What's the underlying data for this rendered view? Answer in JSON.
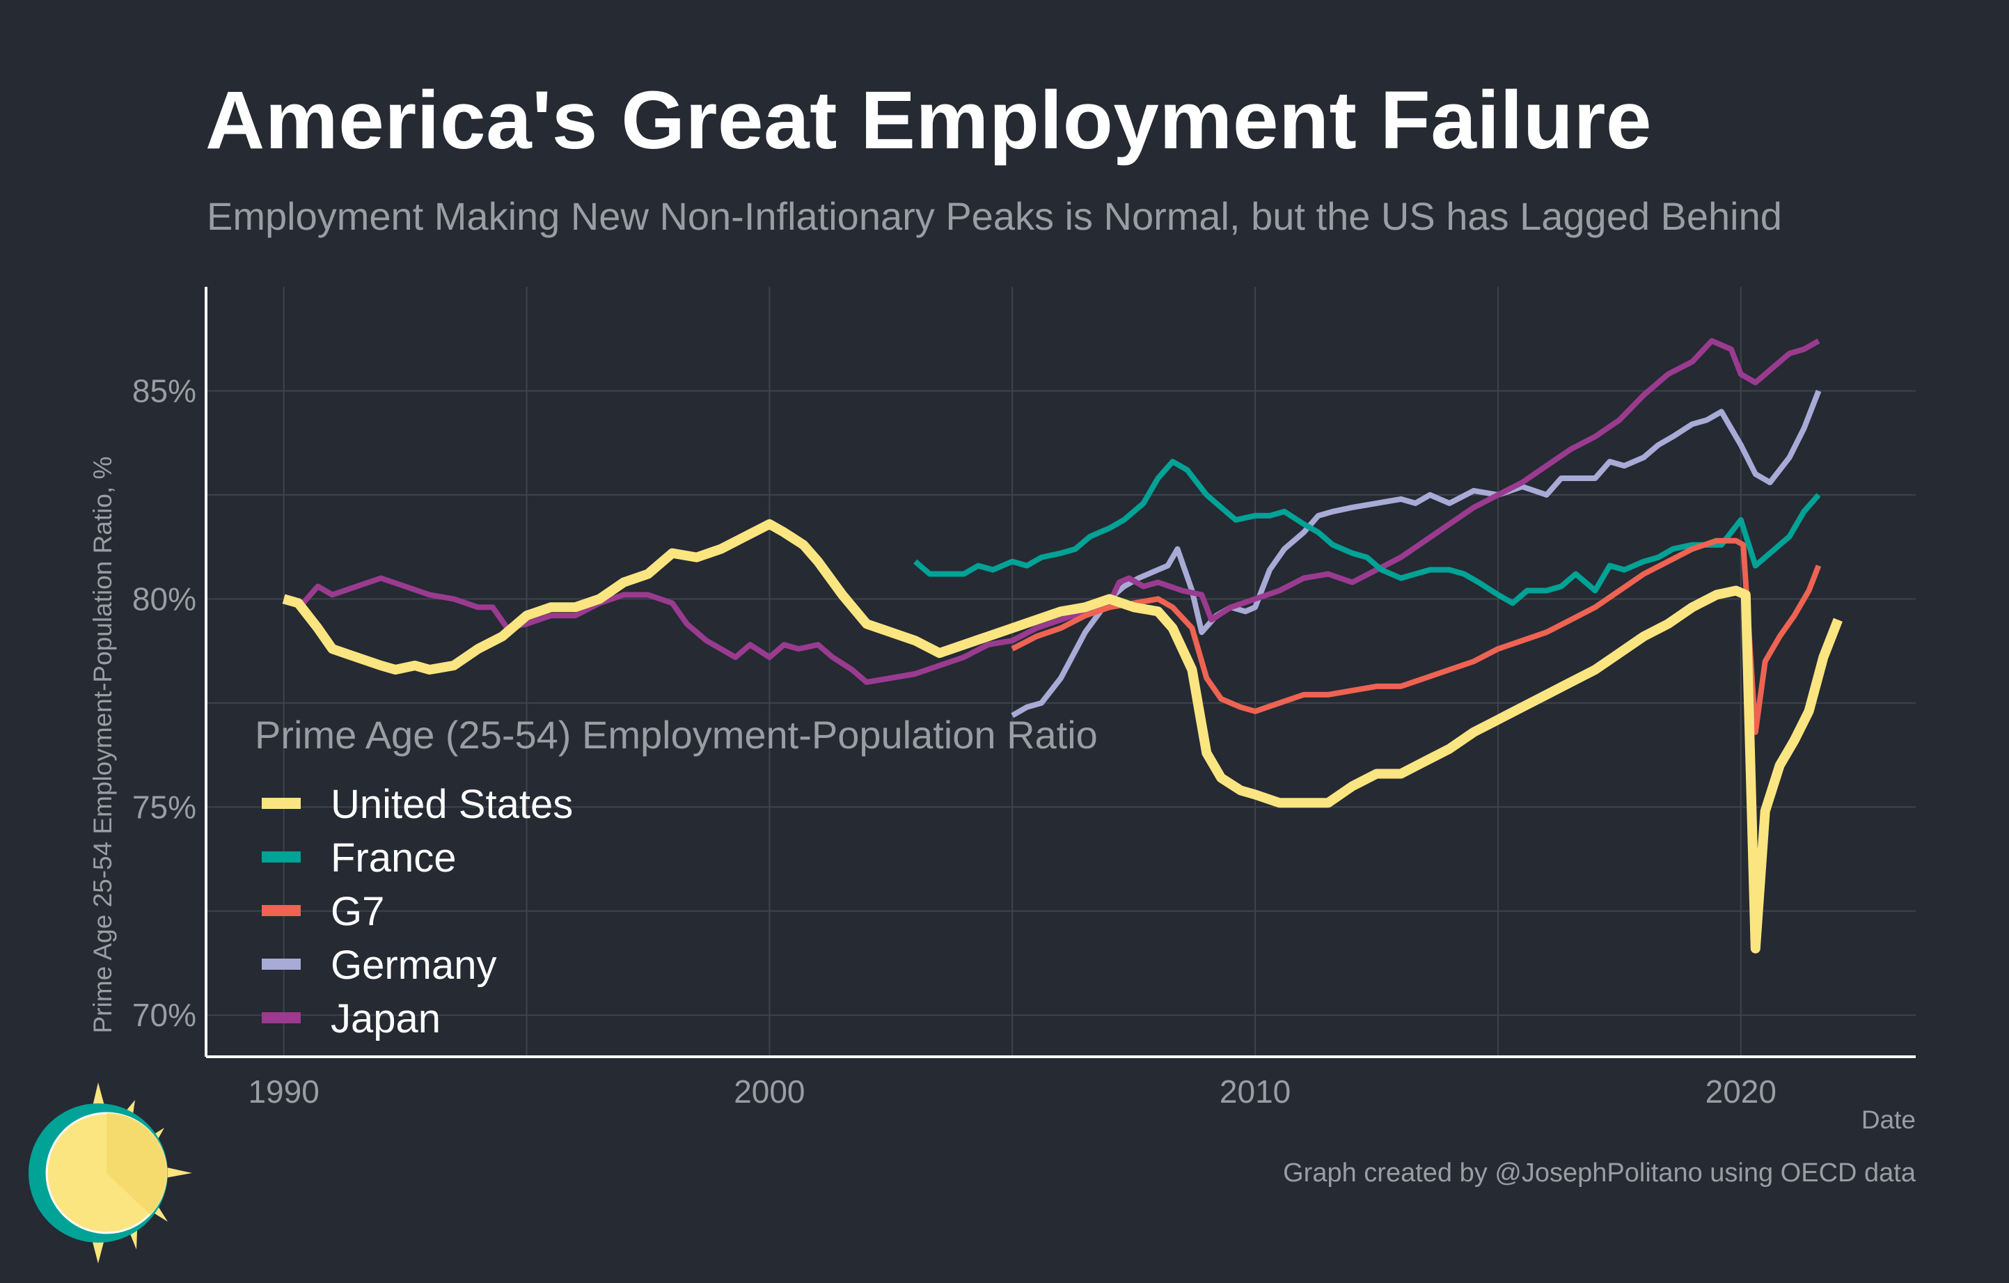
{
  "title": "America's Great Employment Failure",
  "subtitle": "Employment Making New Non-Inflationary Peaks is Normal, but the US has Lagged Behind",
  "caption": "Graph created by @JosephPolitano using OECD data",
  "logo_icon": "sun-icon",
  "colors": {
    "background": "#252a33",
    "grid": "#3e434c",
    "axis": "#ffffff",
    "United States": "#fbe580",
    "France": "#00a396",
    "G7": "#ee6352",
    "Germany": "#a8abd6",
    "Japan": "#9a3b8f"
  },
  "chart_data": {
    "type": "line",
    "xlabel": "Date",
    "ylabel": "Prime Age 25-54 Employment-Population Ratio, %",
    "xlim": [
      1988.4,
      2023.6
    ],
    "ylim": [
      69.0,
      87.5
    ],
    "x_ticks": [
      1990,
      2000,
      2010,
      2020
    ],
    "x_tick_labels": [
      "1990",
      "2000",
      "2010",
      "2020"
    ],
    "y_ticks": [
      70,
      75,
      80,
      85
    ],
    "y_tick_labels": [
      "70%",
      "75%",
      "80%",
      "85%"
    ],
    "grid": true,
    "legend_title": "Prime Age (25-54) Employment-Population Ratio",
    "legend_position": "lower-left",
    "series": [
      {
        "name": "United States",
        "color": "#fbe580",
        "points": [
          [
            1990.0,
            80.0
          ],
          [
            1990.3,
            79.9
          ],
          [
            1990.7,
            79.3
          ],
          [
            1991.0,
            78.8
          ],
          [
            1991.5,
            78.6
          ],
          [
            1992.0,
            78.4
          ],
          [
            1992.3,
            78.3
          ],
          [
            1992.7,
            78.4
          ],
          [
            1993.0,
            78.3
          ],
          [
            1993.5,
            78.4
          ],
          [
            1994.0,
            78.8
          ],
          [
            1994.5,
            79.1
          ],
          [
            1995.0,
            79.6
          ],
          [
            1995.5,
            79.8
          ],
          [
            1996.0,
            79.8
          ],
          [
            1996.5,
            80.0
          ],
          [
            1997.0,
            80.4
          ],
          [
            1997.5,
            80.6
          ],
          [
            1998.0,
            81.1
          ],
          [
            1998.5,
            81.0
          ],
          [
            1999.0,
            81.2
          ],
          [
            1999.5,
            81.5
          ],
          [
            2000.0,
            81.8
          ],
          [
            2000.3,
            81.6
          ],
          [
            2000.7,
            81.3
          ],
          [
            2001.0,
            80.9
          ],
          [
            2001.5,
            80.1
          ],
          [
            2002.0,
            79.4
          ],
          [
            2002.5,
            79.2
          ],
          [
            2003.0,
            79.0
          ],
          [
            2003.5,
            78.7
          ],
          [
            2004.0,
            78.9
          ],
          [
            2004.5,
            79.1
          ],
          [
            2005.0,
            79.3
          ],
          [
            2005.5,
            79.5
          ],
          [
            2006.0,
            79.7
          ],
          [
            2006.5,
            79.8
          ],
          [
            2007.0,
            80.0
          ],
          [
            2007.5,
            79.8
          ],
          [
            2008.0,
            79.7
          ],
          [
            2008.3,
            79.3
          ],
          [
            2008.7,
            78.3
          ],
          [
            2009.0,
            76.3
          ],
          [
            2009.3,
            75.7
          ],
          [
            2009.7,
            75.4
          ],
          [
            2010.0,
            75.3
          ],
          [
            2010.5,
            75.1
          ],
          [
            2011.0,
            75.1
          ],
          [
            2011.5,
            75.1
          ],
          [
            2012.0,
            75.5
          ],
          [
            2012.5,
            75.8
          ],
          [
            2013.0,
            75.8
          ],
          [
            2013.5,
            76.1
          ],
          [
            2014.0,
            76.4
          ],
          [
            2014.5,
            76.8
          ],
          [
            2015.0,
            77.1
          ],
          [
            2015.5,
            77.4
          ],
          [
            2016.0,
            77.7
          ],
          [
            2016.5,
            78.0
          ],
          [
            2017.0,
            78.3
          ],
          [
            2017.5,
            78.7
          ],
          [
            2018.0,
            79.1
          ],
          [
            2018.5,
            79.4
          ],
          [
            2019.0,
            79.8
          ],
          [
            2019.5,
            80.1
          ],
          [
            2019.9,
            80.2
          ],
          [
            2020.1,
            80.1
          ],
          [
            2020.3,
            71.6
          ],
          [
            2020.5,
            74.9
          ],
          [
            2020.8,
            76.0
          ],
          [
            2021.1,
            76.6
          ],
          [
            2021.4,
            77.3
          ],
          [
            2021.7,
            78.6
          ],
          [
            2022.0,
            79.5
          ]
        ]
      },
      {
        "name": "France",
        "color": "#00a396",
        "points": [
          [
            2003.0,
            80.9
          ],
          [
            2003.3,
            80.6
          ],
          [
            2003.7,
            80.6
          ],
          [
            2004.0,
            80.6
          ],
          [
            2004.3,
            80.8
          ],
          [
            2004.6,
            80.7
          ],
          [
            2005.0,
            80.9
          ],
          [
            2005.3,
            80.8
          ],
          [
            2005.6,
            81.0
          ],
          [
            2006.0,
            81.1
          ],
          [
            2006.3,
            81.2
          ],
          [
            2006.6,
            81.5
          ],
          [
            2007.0,
            81.7
          ],
          [
            2007.3,
            81.9
          ],
          [
            2007.7,
            82.3
          ],
          [
            2008.0,
            82.9
          ],
          [
            2008.3,
            83.3
          ],
          [
            2008.6,
            83.1
          ],
          [
            2009.0,
            82.5
          ],
          [
            2009.3,
            82.2
          ],
          [
            2009.6,
            81.9
          ],
          [
            2010.0,
            82.0
          ],
          [
            2010.3,
            82.0
          ],
          [
            2010.6,
            82.1
          ],
          [
            2011.0,
            81.8
          ],
          [
            2011.3,
            81.6
          ],
          [
            2011.6,
            81.3
          ],
          [
            2012.0,
            81.1
          ],
          [
            2012.3,
            81.0
          ],
          [
            2012.6,
            80.7
          ],
          [
            2013.0,
            80.5
          ],
          [
            2013.3,
            80.6
          ],
          [
            2013.6,
            80.7
          ],
          [
            2014.0,
            80.7
          ],
          [
            2014.3,
            80.6
          ],
          [
            2014.6,
            80.4
          ],
          [
            2015.0,
            80.1
          ],
          [
            2015.3,
            79.9
          ],
          [
            2015.6,
            80.2
          ],
          [
            2016.0,
            80.2
          ],
          [
            2016.3,
            80.3
          ],
          [
            2016.6,
            80.6
          ],
          [
            2017.0,
            80.2
          ],
          [
            2017.3,
            80.8
          ],
          [
            2017.6,
            80.7
          ],
          [
            2018.0,
            80.9
          ],
          [
            2018.3,
            81.0
          ],
          [
            2018.6,
            81.2
          ],
          [
            2019.0,
            81.3
          ],
          [
            2019.3,
            81.3
          ],
          [
            2019.6,
            81.3
          ],
          [
            2020.0,
            81.9
          ],
          [
            2020.3,
            80.8
          ],
          [
            2020.6,
            81.1
          ],
          [
            2021.0,
            81.5
          ],
          [
            2021.3,
            82.1
          ],
          [
            2021.6,
            82.5
          ]
        ]
      },
      {
        "name": "G7",
        "color": "#ee6352",
        "points": [
          [
            2005.0,
            78.8
          ],
          [
            2005.5,
            79.1
          ],
          [
            2006.0,
            79.3
          ],
          [
            2006.5,
            79.6
          ],
          [
            2007.0,
            79.8
          ],
          [
            2007.5,
            79.9
          ],
          [
            2008.0,
            80.0
          ],
          [
            2008.3,
            79.8
          ],
          [
            2008.7,
            79.3
          ],
          [
            2009.0,
            78.1
          ],
          [
            2009.3,
            77.6
          ],
          [
            2009.7,
            77.4
          ],
          [
            2010.0,
            77.3
          ],
          [
            2010.5,
            77.5
          ],
          [
            2011.0,
            77.7
          ],
          [
            2011.5,
            77.7
          ],
          [
            2012.0,
            77.8
          ],
          [
            2012.5,
            77.9
          ],
          [
            2013.0,
            77.9
          ],
          [
            2013.5,
            78.1
          ],
          [
            2014.0,
            78.3
          ],
          [
            2014.5,
            78.5
          ],
          [
            2015.0,
            78.8
          ],
          [
            2015.5,
            79.0
          ],
          [
            2016.0,
            79.2
          ],
          [
            2016.5,
            79.5
          ],
          [
            2017.0,
            79.8
          ],
          [
            2017.5,
            80.2
          ],
          [
            2018.0,
            80.6
          ],
          [
            2018.5,
            80.9
          ],
          [
            2019.0,
            81.2
          ],
          [
            2019.5,
            81.4
          ],
          [
            2019.9,
            81.4
          ],
          [
            2020.05,
            81.3
          ],
          [
            2020.3,
            76.8
          ],
          [
            2020.5,
            78.5
          ],
          [
            2020.8,
            79.1
          ],
          [
            2021.1,
            79.6
          ],
          [
            2021.4,
            80.2
          ],
          [
            2021.6,
            80.8
          ]
        ]
      },
      {
        "name": "Germany",
        "color": "#a8abd6",
        "points": [
          [
            2005.0,
            77.2
          ],
          [
            2005.3,
            77.4
          ],
          [
            2005.6,
            77.5
          ],
          [
            2006.0,
            78.1
          ],
          [
            2006.5,
            79.2
          ],
          [
            2007.0,
            80.0
          ],
          [
            2007.3,
            80.3
          ],
          [
            2007.6,
            80.5
          ],
          [
            2008.0,
            80.7
          ],
          [
            2008.2,
            80.8
          ],
          [
            2008.4,
            81.2
          ],
          [
            2008.7,
            80.2
          ],
          [
            2008.9,
            79.2
          ],
          [
            2009.2,
            79.6
          ],
          [
            2009.5,
            79.8
          ],
          [
            2009.8,
            79.7
          ],
          [
            2010.0,
            79.8
          ],
          [
            2010.3,
            80.7
          ],
          [
            2010.6,
            81.2
          ],
          [
            2011.0,
            81.6
          ],
          [
            2011.3,
            82.0
          ],
          [
            2011.6,
            82.1
          ],
          [
            2012.0,
            82.2
          ],
          [
            2012.5,
            82.3
          ],
          [
            2013.0,
            82.4
          ],
          [
            2013.3,
            82.3
          ],
          [
            2013.6,
            82.5
          ],
          [
            2014.0,
            82.3
          ],
          [
            2014.5,
            82.6
          ],
          [
            2015.0,
            82.5
          ],
          [
            2015.5,
            82.7
          ],
          [
            2016.0,
            82.5
          ],
          [
            2016.3,
            82.9
          ],
          [
            2016.6,
            82.9
          ],
          [
            2017.0,
            82.9
          ],
          [
            2017.3,
            83.3
          ],
          [
            2017.6,
            83.2
          ],
          [
            2018.0,
            83.4
          ],
          [
            2018.3,
            83.7
          ],
          [
            2018.6,
            83.9
          ],
          [
            2019.0,
            84.2
          ],
          [
            2019.3,
            84.3
          ],
          [
            2019.6,
            84.5
          ],
          [
            2020.0,
            83.7
          ],
          [
            2020.3,
            83.0
          ],
          [
            2020.6,
            82.8
          ],
          [
            2021.0,
            83.4
          ],
          [
            2021.3,
            84.1
          ],
          [
            2021.6,
            85.0
          ]
        ]
      },
      {
        "name": "Japan",
        "color": "#9a3b8f",
        "points": [
          [
            1990.0,
            80.0
          ],
          [
            1990.4,
            79.9
          ],
          [
            1990.7,
            80.3
          ],
          [
            1991.0,
            80.1
          ],
          [
            1991.5,
            80.3
          ],
          [
            1992.0,
            80.5
          ],
          [
            1992.5,
            80.3
          ],
          [
            1993.0,
            80.1
          ],
          [
            1993.5,
            80.0
          ],
          [
            1994.0,
            79.8
          ],
          [
            1994.3,
            79.8
          ],
          [
            1994.6,
            79.3
          ],
          [
            1995.0,
            79.4
          ],
          [
            1995.5,
            79.6
          ],
          [
            1996.0,
            79.6
          ],
          [
            1996.5,
            79.9
          ],
          [
            1997.0,
            80.1
          ],
          [
            1997.5,
            80.1
          ],
          [
            1998.0,
            79.9
          ],
          [
            1998.3,
            79.4
          ],
          [
            1998.7,
            79.0
          ],
          [
            1999.0,
            78.8
          ],
          [
            1999.3,
            78.6
          ],
          [
            1999.6,
            78.9
          ],
          [
            2000.0,
            78.6
          ],
          [
            2000.3,
            78.9
          ],
          [
            2000.6,
            78.8
          ],
          [
            2001.0,
            78.9
          ],
          [
            2001.3,
            78.6
          ],
          [
            2001.7,
            78.3
          ],
          [
            2002.0,
            78.0
          ],
          [
            2002.5,
            78.1
          ],
          [
            2003.0,
            78.2
          ],
          [
            2003.5,
            78.4
          ],
          [
            2004.0,
            78.6
          ],
          [
            2004.5,
            78.9
          ],
          [
            2005.0,
            79.0
          ],
          [
            2005.5,
            79.3
          ],
          [
            2006.0,
            79.5
          ],
          [
            2006.5,
            79.7
          ],
          [
            2007.0,
            79.9
          ],
          [
            2007.2,
            80.4
          ],
          [
            2007.4,
            80.5
          ],
          [
            2007.7,
            80.3
          ],
          [
            2008.0,
            80.4
          ],
          [
            2008.5,
            80.2
          ],
          [
            2008.9,
            80.1
          ],
          [
            2009.1,
            79.5
          ],
          [
            2009.5,
            79.8
          ],
          [
            2010.0,
            80.0
          ],
          [
            2010.5,
            80.2
          ],
          [
            2011.0,
            80.5
          ],
          [
            2011.5,
            80.6
          ],
          [
            2012.0,
            80.4
          ],
          [
            2012.5,
            80.7
          ],
          [
            2013.0,
            81.0
          ],
          [
            2013.5,
            81.4
          ],
          [
            2014.0,
            81.8
          ],
          [
            2014.5,
            82.2
          ],
          [
            2015.0,
            82.5
          ],
          [
            2015.5,
            82.8
          ],
          [
            2016.0,
            83.2
          ],
          [
            2016.5,
            83.6
          ],
          [
            2017.0,
            83.9
          ],
          [
            2017.5,
            84.3
          ],
          [
            2018.0,
            84.9
          ],
          [
            2018.5,
            85.4
          ],
          [
            2019.0,
            85.7
          ],
          [
            2019.4,
            86.2
          ],
          [
            2019.8,
            86.0
          ],
          [
            2020.0,
            85.4
          ],
          [
            2020.3,
            85.2
          ],
          [
            2020.6,
            85.5
          ],
          [
            2021.0,
            85.9
          ],
          [
            2021.3,
            86.0
          ],
          [
            2021.6,
            86.2
          ]
        ]
      }
    ]
  }
}
